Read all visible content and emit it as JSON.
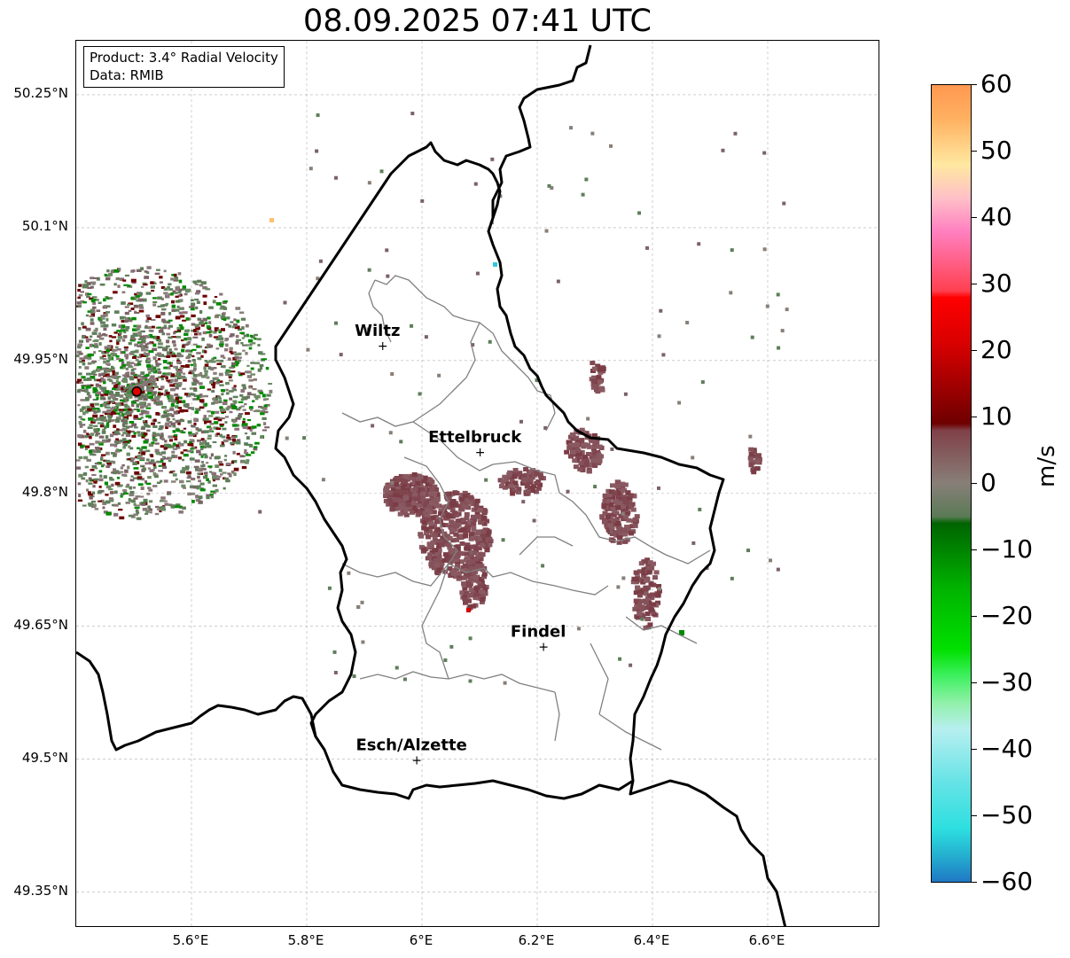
{
  "title": "08.09.2025 07:41 UTC",
  "info_box": {
    "line1": "Product: 3.4° Radial Velocity",
    "line2": "Data: RMIB"
  },
  "latitude_labels": [
    "50.25°N",
    "50.1°N",
    "49.95°N",
    "49.8°N",
    "49.65°N",
    "49.5°N",
    "49.35°N"
  ],
  "longitude_labels": [
    "5.6°E",
    "5.8°E",
    "6°E",
    "6.2°E",
    "6.4°E",
    "6.6°E"
  ],
  "cities": [
    {
      "name": "Wiltz",
      "lon": 5.932,
      "lat": 49.967
    },
    {
      "name": "Ettelbruck",
      "lon": 6.101,
      "lat": 49.847
    },
    {
      "name": "Findel",
      "lon": 6.211,
      "lat": 49.627
    },
    {
      "name": "Esch/Alzette",
      "lon": 5.991,
      "lat": 49.499
    }
  ],
  "radar_site": {
    "lon": 5.505,
    "lat": 49.915,
    "color": "#e00000"
  },
  "colorbar": {
    "unit": "m/s",
    "min": -60,
    "max": 60,
    "tick_labels": [
      "60",
      "50",
      "40",
      "30",
      "20",
      "10",
      "0",
      "−10",
      "−20",
      "−30",
      "−40",
      "−50",
      "−60"
    ],
    "stops": [
      {
        "v": -60,
        "c": "#1f78c4"
      },
      {
        "v": -56,
        "c": "#24b0d0"
      },
      {
        "v": -52,
        "c": "#2ddfe0"
      },
      {
        "v": -45,
        "c": "#66e3e6"
      },
      {
        "v": -37,
        "c": "#b7eff0"
      },
      {
        "v": -33,
        "c": "#90f0a8"
      },
      {
        "v": -29,
        "c": "#3ef060"
      },
      {
        "v": -25,
        "c": "#00e000"
      },
      {
        "v": -16,
        "c": "#00b400"
      },
      {
        "v": -6,
        "c": "#006400"
      },
      {
        "v": -5,
        "c": "#5a7a55"
      },
      {
        "v": 0,
        "c": "#887f78"
      },
      {
        "v": 8,
        "c": "#804048"
      },
      {
        "v": 9,
        "c": "#6e0000"
      },
      {
        "v": 21,
        "c": "#d80000"
      },
      {
        "v": 28,
        "c": "#ff0000"
      },
      {
        "v": 29,
        "c": "#ff4050"
      },
      {
        "v": 38,
        "c": "#ff80c0"
      },
      {
        "v": 43,
        "c": "#ffc0c8"
      },
      {
        "v": 48,
        "c": "#ffe8a0"
      },
      {
        "v": 55,
        "c": "#ffb060"
      },
      {
        "v": 60,
        "c": "#ff9850"
      }
    ]
  },
  "colors": {
    "border": "#000000",
    "canton": "#808080",
    "grid": "#b0b0b0"
  }
}
